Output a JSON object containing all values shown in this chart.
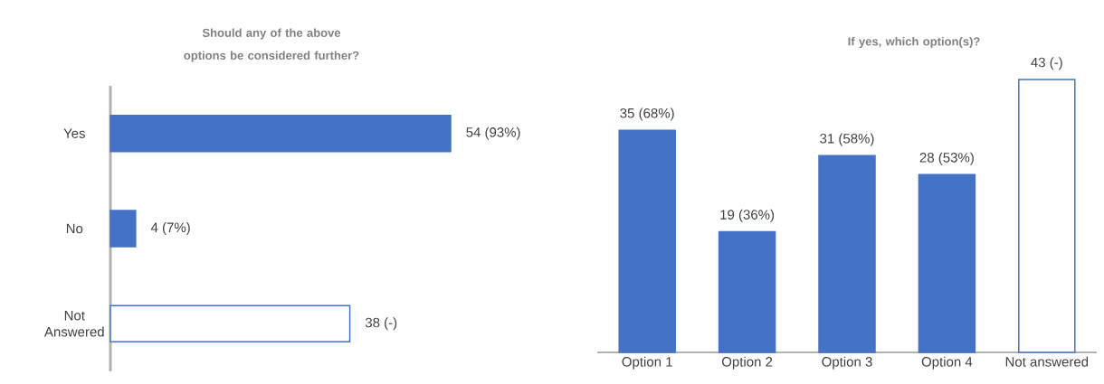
{
  "chart_data": [
    {
      "type": "bar",
      "orientation": "horizontal",
      "title": "Should any of the above options be considered further?",
      "categories": [
        "Yes",
        "No",
        "Not Answered"
      ],
      "values": [
        54,
        4,
        38
      ],
      "colors": [
        "#4472c4",
        "#4472c4",
        "#ffffff"
      ],
      "value_labels": [
        "54 (93%)",
        "4 (7%)",
        "38 (-)"
      ]
    },
    {
      "type": "bar",
      "title": "If yes, which option(s)?",
      "categories": [
        "Option 1",
        "Option 2",
        "Option 3",
        "Option 4",
        "Not answered"
      ],
      "values": [
        35,
        19,
        31,
        28,
        43
      ],
      "colors": [
        "#4472c4",
        "#4472c4",
        "#4472c4",
        "#4472c4",
        "#ffffff"
      ],
      "value_labels": [
        "35 (68%)",
        "19 (36%)",
        "31 (58%)",
        "28 (53%)",
        "43 (-)"
      ]
    }
  ]
}
